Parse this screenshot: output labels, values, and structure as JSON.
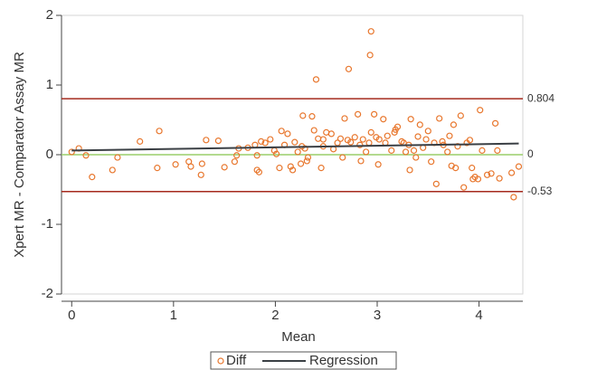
{
  "chart_data": {
    "type": "scatter",
    "x_label": "Mean",
    "y_label": "Xpert MR - Comparator Assay MR",
    "xlim": [
      -0.1,
      4.43
    ],
    "ylim": [
      -2,
      2
    ],
    "xticks": [
      0,
      1,
      2,
      3,
      4
    ],
    "yticks": [
      -2,
      -1,
      0,
      1,
      2
    ],
    "legend": "bottom",
    "series": [
      {
        "name": "Diff",
        "color": "#e8772e",
        "x": [
          0,
          0.07,
          0.14,
          0.2,
          0.4,
          0.45,
          0.67,
          0.84,
          0.86,
          1.02,
          1.15,
          1.17,
          1.27,
          1.28,
          1.32,
          1.44,
          1.5,
          1.6,
          1.62,
          1.64,
          1.73,
          1.8,
          1.82,
          1.82,
          1.84,
          1.86,
          1.9,
          1.95,
          1.99,
          2.01,
          2.04,
          2.06,
          2.09,
          2.12,
          2.15,
          2.17,
          2.19,
          2.22,
          2.25,
          2.26,
          2.27,
          2.29,
          2.31,
          2.32,
          2.36,
          2.38,
          2.4,
          2.42,
          2.45,
          2.47,
          2.47,
          2.5,
          2.55,
          2.57,
          2.61,
          2.64,
          2.66,
          2.68,
          2.71,
          2.72,
          2.74,
          2.78,
          2.81,
          2.83,
          2.84,
          2.86,
          2.89,
          2.92,
          2.93,
          2.94,
          2.94,
          2.97,
          2.99,
          3.01,
          3.02,
          3.06,
          3.08,
          3.1,
          3.14,
          3.17,
          3.18,
          3.2,
          3.24,
          3.26,
          3.28,
          3.31,
          3.32,
          3.33,
          3.36,
          3.38,
          3.4,
          3.42,
          3.45,
          3.48,
          3.5,
          3.53,
          3.56,
          3.58,
          3.61,
          3.64,
          3.65,
          3.69,
          3.71,
          3.73,
          3.75,
          3.77,
          3.79,
          3.82,
          3.85,
          3.88,
          3.91,
          3.93,
          3.94,
          3.96,
          3.99,
          4.01,
          4.03,
          4.08,
          4.12,
          4.16,
          4.18,
          4.2,
          4.32,
          4.34,
          4.39
        ],
        "values": [
          0.04,
          0.09,
          -0.01,
          -0.32,
          -0.22,
          -0.04,
          0.19,
          -0.19,
          0.34,
          -0.14,
          -0.1,
          -0.17,
          -0.29,
          -0.13,
          0.21,
          0.2,
          -0.18,
          -0.1,
          -0.01,
          0.09,
          0.1,
          0.14,
          -0.01,
          -0.22,
          -0.25,
          0.19,
          0.17,
          0.22,
          0.06,
          0.01,
          -0.19,
          0.34,
          0.14,
          0.3,
          -0.17,
          -0.22,
          0.18,
          0.04,
          -0.13,
          0.12,
          0.56,
          0.09,
          -0.09,
          -0.04,
          0.55,
          0.35,
          1.08,
          0.23,
          -0.19,
          0.22,
          0.12,
          0.32,
          0.3,
          0.08,
          0.17,
          0.23,
          -0.04,
          0.52,
          0.21,
          1.23,
          0.18,
          0.25,
          0.58,
          0.14,
          -0.09,
          0.22,
          0.04,
          0.17,
          1.43,
          1.77,
          0.32,
          0.58,
          0.25,
          -0.14,
          0.22,
          0.51,
          0.17,
          0.27,
          0.06,
          0.32,
          0.36,
          0.4,
          0.19,
          0.17,
          0.04,
          0.14,
          -0.22,
          0.51,
          0.06,
          -0.04,
          0.26,
          0.43,
          0.1,
          0.22,
          0.34,
          -0.1,
          0.17,
          -0.42,
          0.52,
          0.19,
          0.14,
          0.04,
          0.27,
          -0.16,
          0.43,
          -0.19,
          0.12,
          0.56,
          -0.47,
          0.17,
          0.21,
          -0.19,
          -0.35,
          -0.32,
          -0.35,
          0.64,
          0.06,
          -0.29,
          -0.27,
          0.45,
          0.06,
          -0.34,
          -0.26,
          -0.61,
          -0.17
        ]
      }
    ],
    "regression": {
      "name": "Regression",
      "color": "#3a3f44",
      "x": [
        0,
        4.39
      ],
      "values": [
        0.06,
        0.16
      ]
    },
    "reference_lines": [
      {
        "value": 0.804,
        "color": "#a52a1e"
      },
      {
        "value": 0,
        "color": "#9acd6a"
      },
      {
        "value": -0.53,
        "color": "#a52a1e"
      }
    ]
  }
}
